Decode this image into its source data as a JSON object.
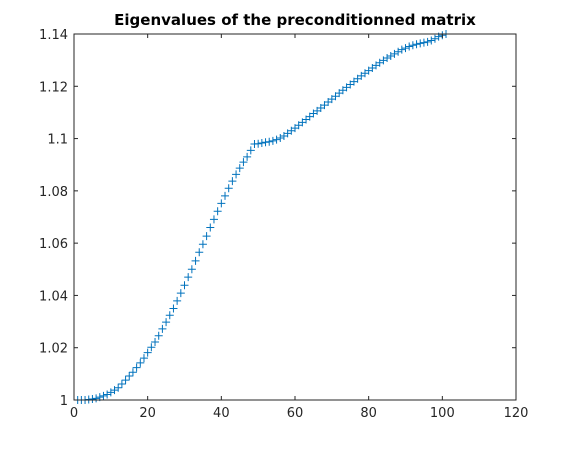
{
  "chart_data": {
    "type": "scatter",
    "title": "Eigenvalues of the preconditionned matrix",
    "xlabel": "",
    "ylabel": "",
    "xlim": [
      0,
      120
    ],
    "ylim": [
      1,
      1.14
    ],
    "xticks": [
      0,
      20,
      40,
      60,
      80,
      100,
      120
    ],
    "xtick_labels": [
      "0",
      "20",
      "40",
      "60",
      "80",
      "100",
      "120"
    ],
    "yticks": [
      1,
      1.02,
      1.04,
      1.06,
      1.08,
      1.1,
      1.12,
      1.14
    ],
    "ytick_labels": [
      "1",
      "1.02",
      "1.04",
      "1.06",
      "1.08",
      "1.1",
      "1.12",
      "1.14"
    ],
    "grid": false,
    "marker": "+",
    "color": "#0072BD",
    "series": [
      {
        "x": [
          1,
          2,
          3,
          4,
          5,
          6,
          7,
          8,
          9,
          10,
          11,
          12,
          13,
          14,
          15,
          16,
          17,
          18,
          19,
          20,
          21,
          22,
          23,
          24,
          25,
          26,
          27,
          28,
          29,
          30,
          31,
          32,
          33,
          34,
          35,
          36,
          37,
          38,
          39,
          40,
          41,
          42,
          43,
          44,
          45,
          46,
          47,
          48,
          49,
          50,
          51,
          52,
          53,
          54,
          55,
          56,
          57,
          58,
          59,
          60,
          61,
          62,
          63,
          64,
          65,
          66,
          67,
          68,
          69,
          70,
          71,
          72,
          73,
          74,
          75,
          76,
          77,
          78,
          79,
          80,
          81,
          82,
          83,
          84,
          85,
          86,
          87,
          88,
          89,
          90,
          91,
          92,
          93,
          94,
          95,
          96,
          97,
          98,
          99,
          100,
          101
        ],
        "y": [
          1.0,
          1.0,
          1.0,
          1.0002,
          1.0004,
          1.0006,
          1.0011,
          1.0016,
          1.0021,
          1.0029,
          1.0038,
          1.0047,
          1.0061,
          1.0076,
          1.0092,
          1.0106,
          1.0124,
          1.0142,
          1.016,
          1.0181,
          1.0202,
          1.0222,
          1.0246,
          1.0272,
          1.0298,
          1.0324,
          1.035,
          1.0379,
          1.0409,
          1.0439,
          1.047,
          1.05,
          1.0532,
          1.0565,
          1.0596,
          1.0627,
          1.066,
          1.0691,
          1.0722,
          1.0752,
          1.0781,
          1.081,
          1.0837,
          1.0863,
          1.0887,
          1.091,
          1.093,
          1.0955,
          1.0979,
          1.098,
          1.0983,
          1.0986,
          1.0988,
          1.0991,
          1.0996,
          1.1002,
          1.101,
          1.102,
          1.103,
          1.104,
          1.1051,
          1.1062,
          1.1073,
          1.1084,
          1.1096,
          1.1106,
          1.1117,
          1.1128,
          1.114,
          1.1151,
          1.1162,
          1.1174,
          1.1185,
          1.1196,
          1.1207,
          1.1218,
          1.1229,
          1.124,
          1.125,
          1.126,
          1.127,
          1.128,
          1.129,
          1.1299,
          1.1308,
          1.1316,
          1.1324,
          1.1332,
          1.134,
          1.1346,
          1.1352,
          1.1357,
          1.1361,
          1.1364,
          1.1367,
          1.137,
          1.1375,
          1.1382,
          1.139,
          1.1395,
          1.14
        ]
      }
    ]
  }
}
